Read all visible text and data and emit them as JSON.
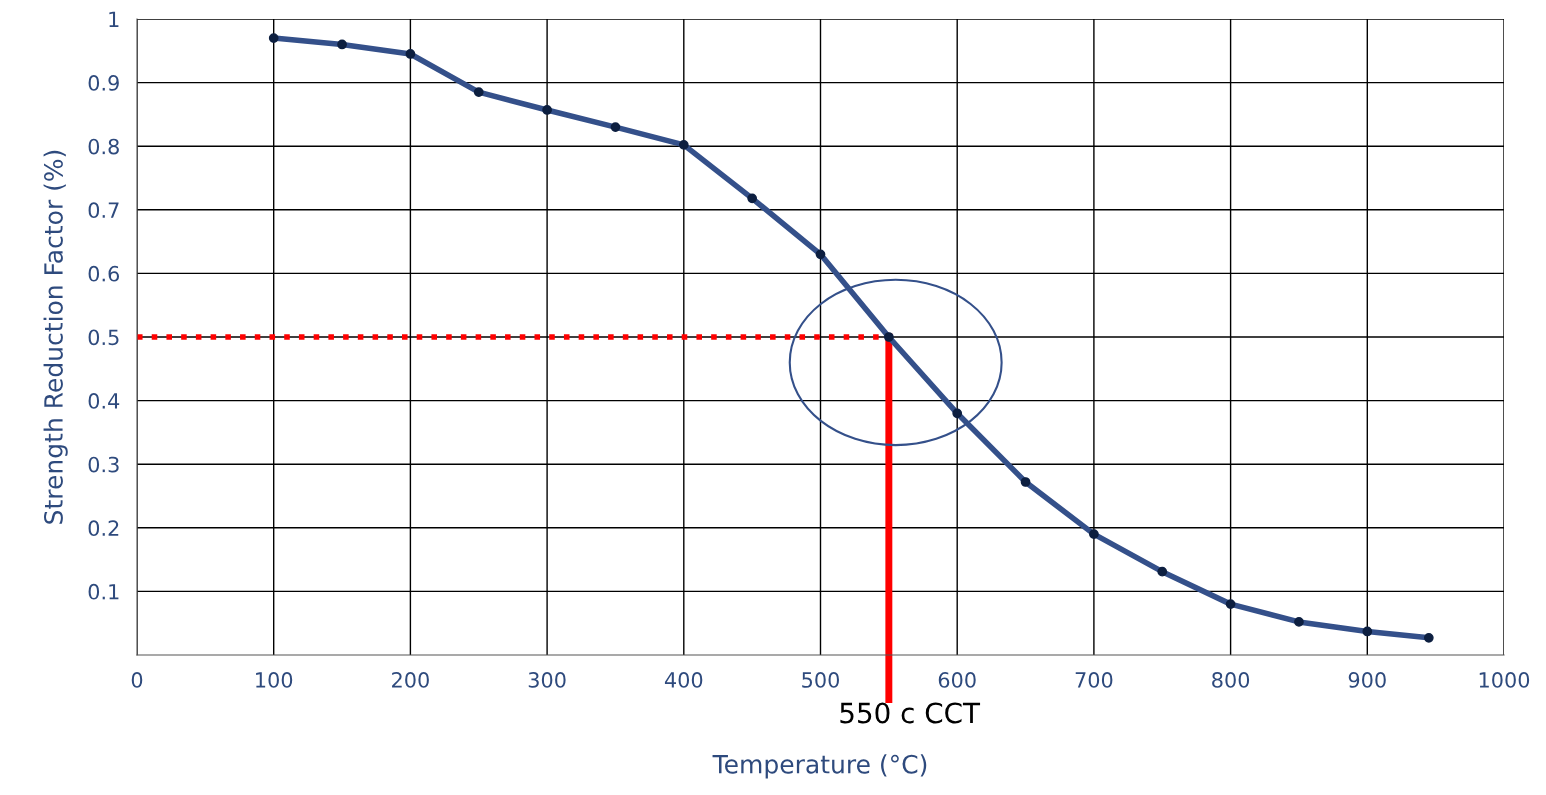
{
  "chart_data": {
    "type": "line",
    "xlabel": "Temperature (°C)",
    "ylabel": "Strength Reduction Factor (%)",
    "x": [
      100,
      150,
      200,
      250,
      300,
      350,
      400,
      450,
      500,
      550,
      600,
      650,
      700,
      750,
      800,
      850,
      900,
      945
    ],
    "series": [
      {
        "color": "#34508a",
        "values": [
          0.97,
          0.96,
          0.945,
          0.885,
          0.857,
          0.83,
          0.802,
          0.718,
          0.63,
          0.5,
          0.38,
          0.272,
          0.19,
          0.131,
          0.08,
          0.052,
          0.037,
          0.027
        ]
      }
    ],
    "xlim": [
      0,
      1000
    ],
    "xticks": [
      0,
      100,
      200,
      300,
      400,
      500,
      600,
      700,
      800,
      900,
      1000
    ],
    "ylim": [
      0,
      1
    ],
    "yticks": [
      0.1,
      0.2,
      0.3,
      0.4,
      0.5,
      0.6,
      0.7,
      0.8,
      0.9,
      1
    ],
    "grid": true,
    "marker": "circle",
    "line_style": "solid",
    "ref_lines": [
      {
        "axis": "y",
        "value": 0.5,
        "color": "#ff0000",
        "line_style": "dotted"
      },
      {
        "axis": "x",
        "value": 550,
        "color": "#ff0000",
        "line_style": "solid",
        "label": "550 c CCT"
      }
    ]
  }
}
